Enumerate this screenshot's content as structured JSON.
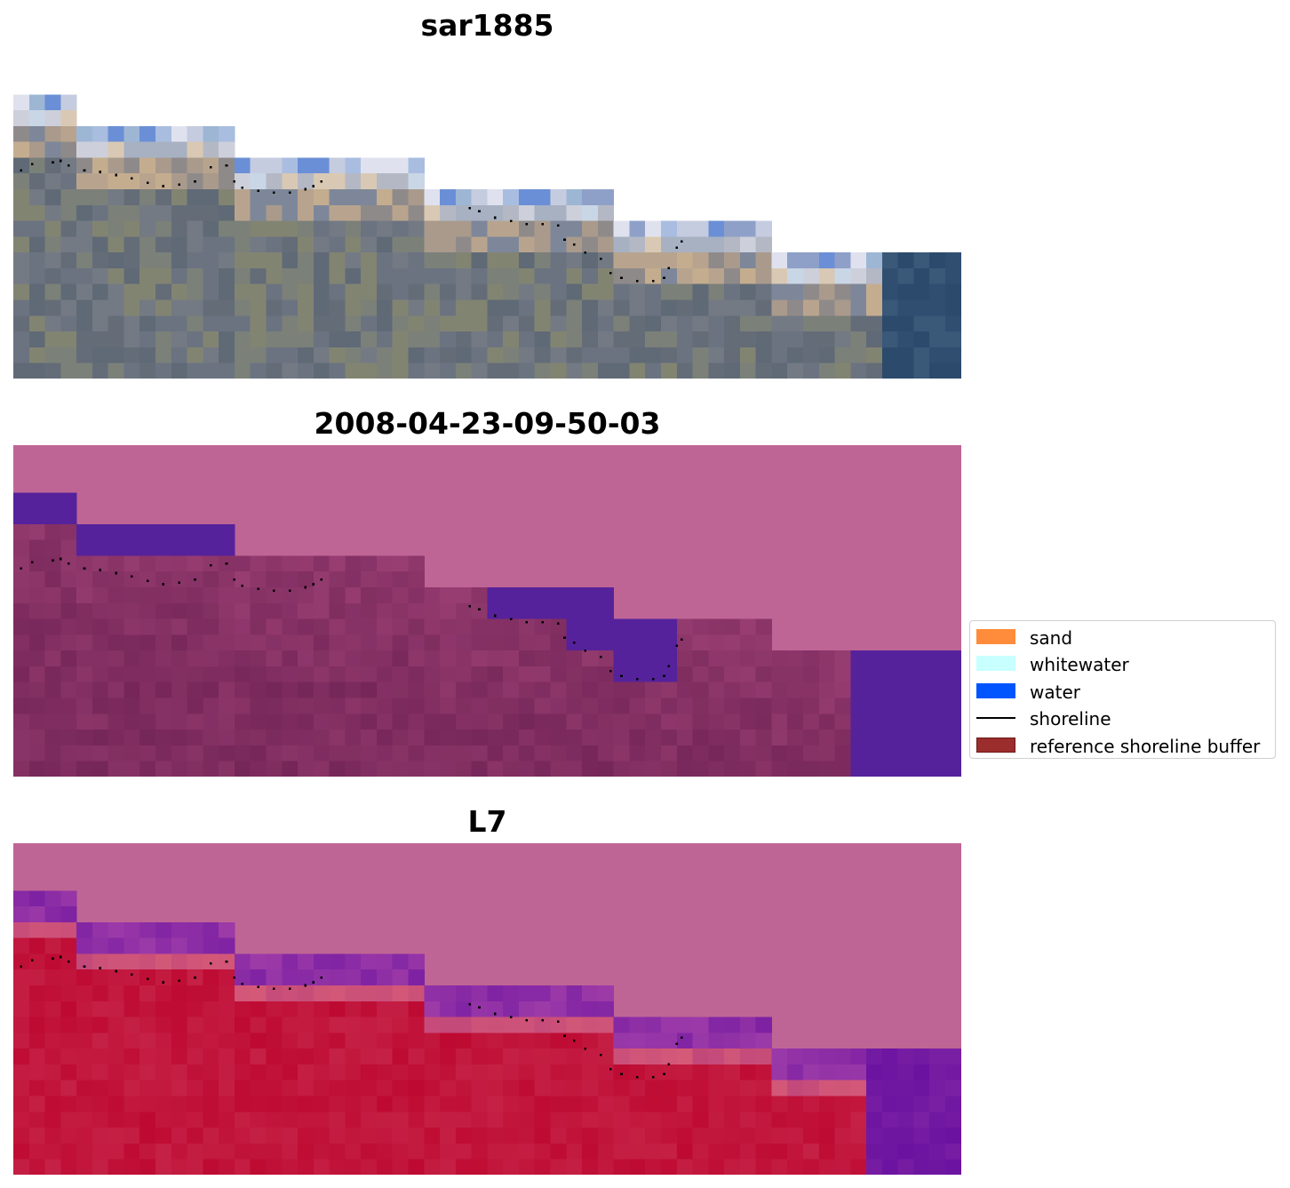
{
  "panels": [
    {
      "title": "sar1885"
    },
    {
      "title": "2008-04-23-09-50-03"
    },
    {
      "title": "L7"
    }
  ],
  "legend": {
    "items": [
      {
        "label": "sand",
        "color": "#ff8c3a",
        "kind": "patch"
      },
      {
        "label": "whitewater",
        "color": "#c8ffff",
        "kind": "patch"
      },
      {
        "label": "water",
        "color": "#0055ff",
        "kind": "patch"
      },
      {
        "label": "shoreline",
        "color": "#000000",
        "kind": "line"
      },
      {
        "label": "reference shoreline buffer",
        "color": "#9b2d2d",
        "kind": "patch"
      }
    ]
  },
  "colors": {
    "background_mask": "#bf6595",
    "water_class": "#55229b",
    "index_high": "#be0a32",
    "index_low": "#6a12a0"
  }
}
